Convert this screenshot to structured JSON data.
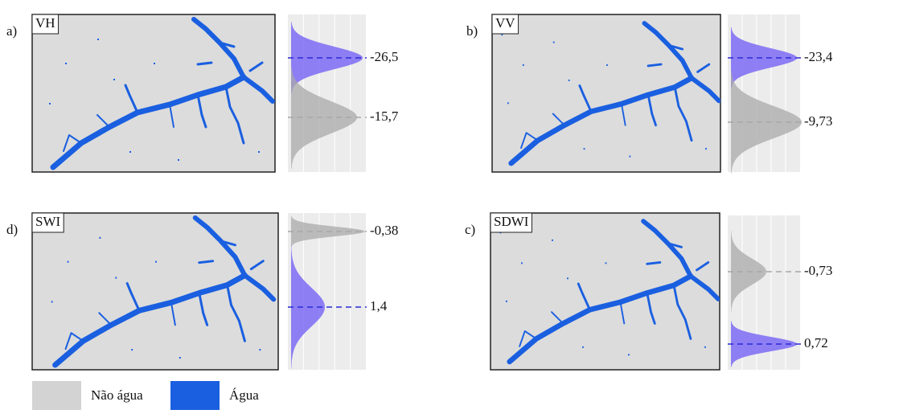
{
  "panels": [
    {
      "letter": "a)",
      "name": "VH",
      "thresholds": [
        {
          "label": "-26,5",
          "color": "#2b2bd6"
        },
        {
          "label": "-15,7",
          "color": "#a8a8a8"
        }
      ]
    },
    {
      "letter": "b)",
      "name": "VV",
      "thresholds": [
        {
          "label": "-23,4",
          "color": "#2b2bd6"
        },
        {
          "label": "-9,73",
          "color": "#a8a8a8"
        }
      ]
    },
    {
      "letter": "d)",
      "name": "SWI",
      "thresholds": [
        {
          "label": "-0,38",
          "color": "#a8a8a8"
        },
        {
          "label": "1,4",
          "color": "#2b2bd6"
        }
      ]
    },
    {
      "letter": "c)",
      "name": "SDWI",
      "thresholds": [
        {
          "label": "-0,73",
          "color": "#a8a8a8"
        },
        {
          "label": "0,72",
          "color": "#2b2bd6"
        }
      ]
    }
  ],
  "legend": [
    {
      "label": "Não água",
      "color": "#d3d3d3"
    },
    {
      "label": "Água",
      "color": "#1a5fe0"
    }
  ]
}
